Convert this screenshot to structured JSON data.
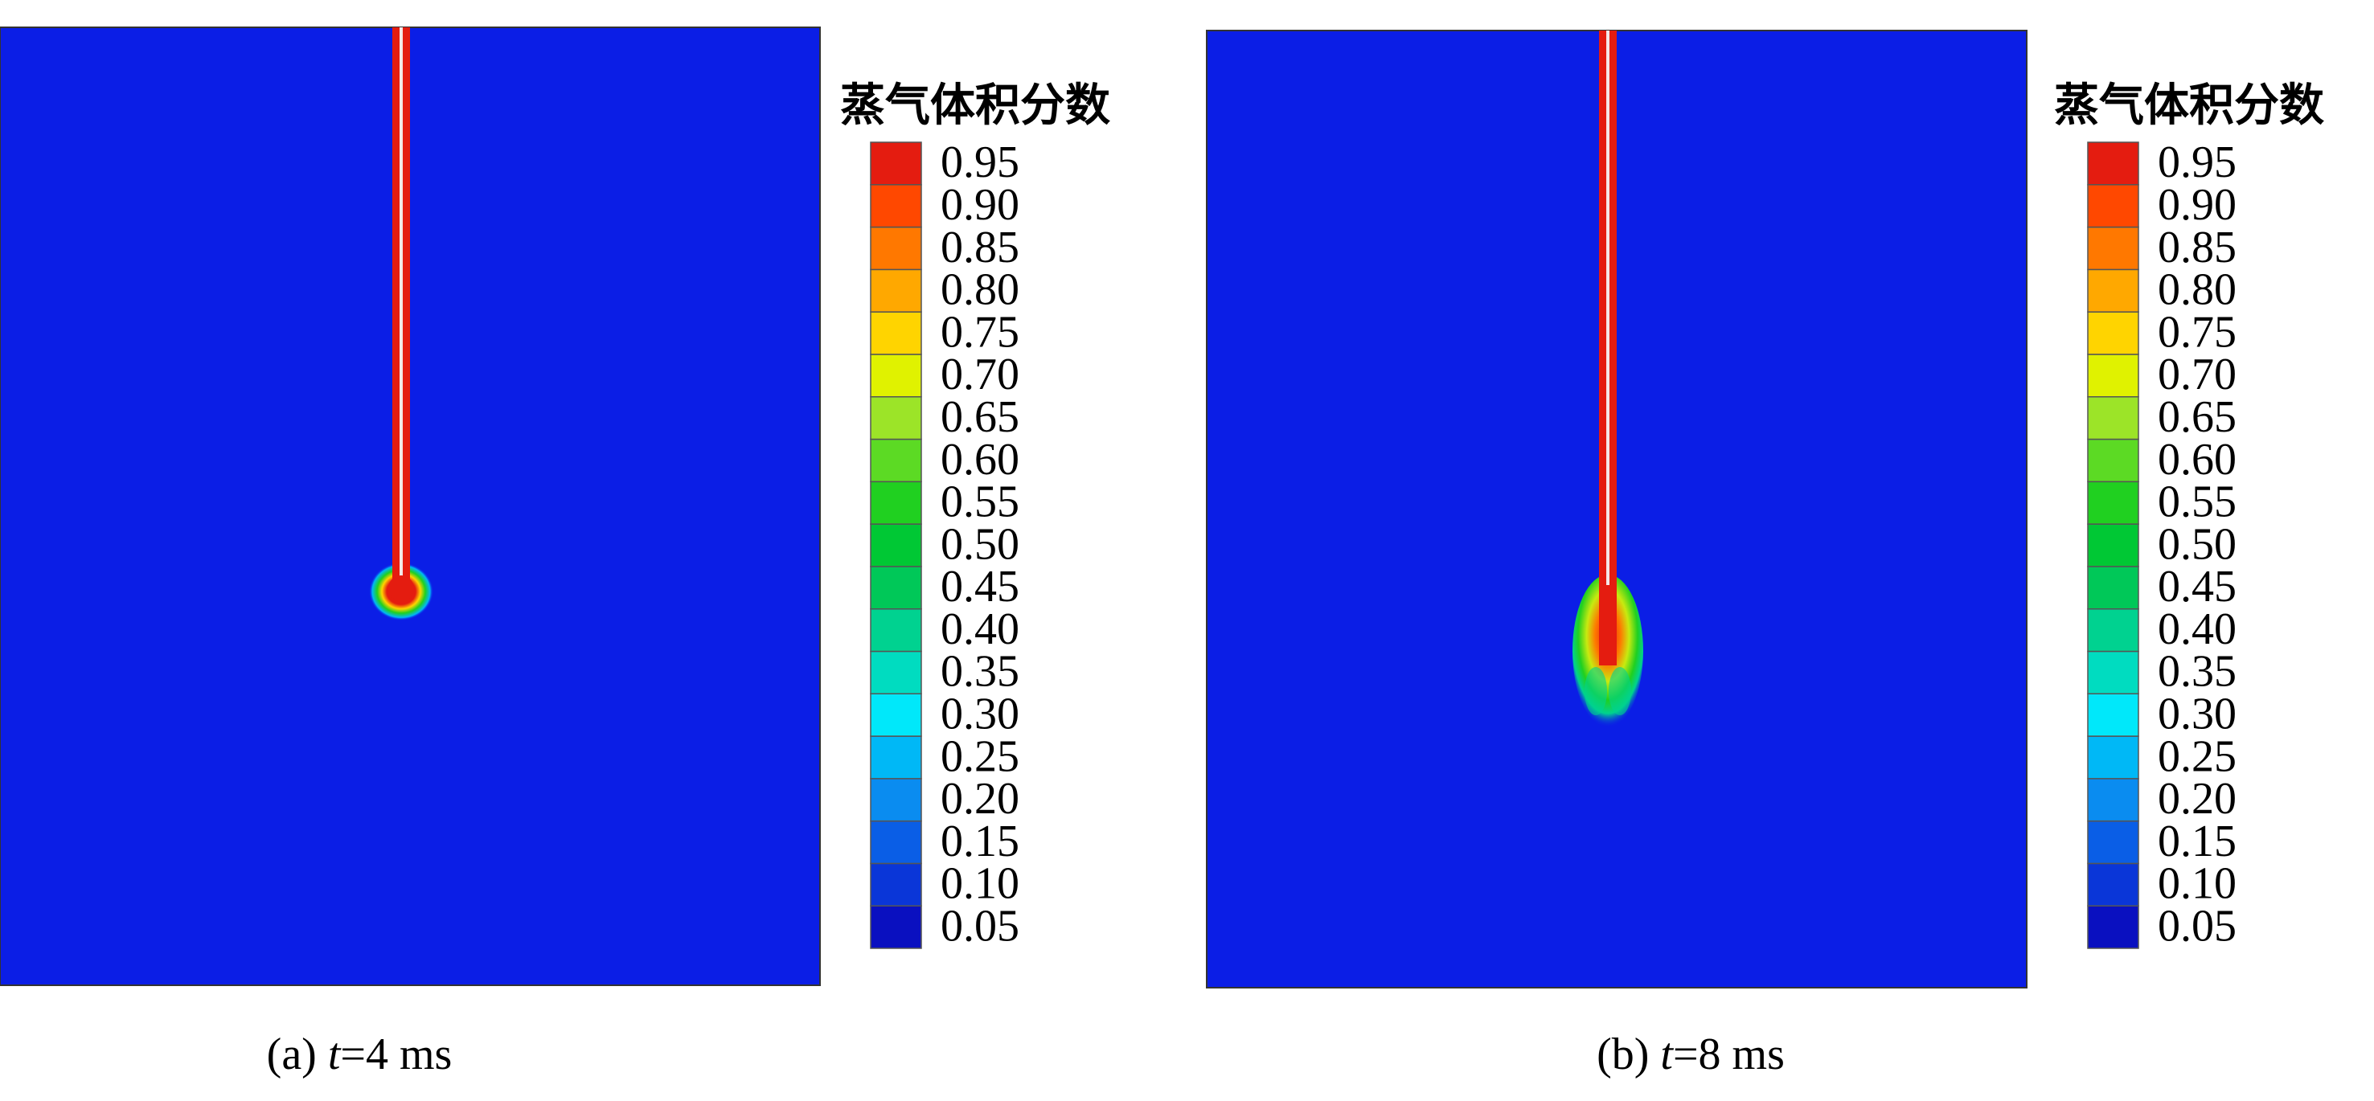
{
  "panels": [
    {
      "caption": {
        "label": "(a)",
        "symbol": "t",
        "rest": "=4 ms"
      },
      "colorbar": {
        "title": "蒸气体积分数",
        "levels": [
          {
            "label": "0.05",
            "color": "#0a10c0"
          },
          {
            "label": "0.10",
            "color": "#0a36d8"
          },
          {
            "label": "0.15",
            "color": "#0a5ee6"
          },
          {
            "label": "0.20",
            "color": "#0a8cf0"
          },
          {
            "label": "0.25",
            "color": "#00b8f6"
          },
          {
            "label": "0.30",
            "color": "#00e8fa"
          },
          {
            "label": "0.35",
            "color": "#00dcc0"
          },
          {
            "label": "0.40",
            "color": "#00d290"
          },
          {
            "label": "0.45",
            "color": "#00c858"
          },
          {
            "label": "0.50",
            "color": "#00c834"
          },
          {
            "label": "0.55",
            "color": "#20d020"
          },
          {
            "label": "0.60",
            "color": "#5cda24"
          },
          {
            "label": "0.65",
            "color": "#9ce428"
          },
          {
            "label": "0.70",
            "color": "#e0f200"
          },
          {
            "label": "0.75",
            "color": "#ffd400"
          },
          {
            "label": "0.80",
            "color": "#ffa800"
          },
          {
            "label": "0.85",
            "color": "#ff7800"
          },
          {
            "label": "0.90",
            "color": "#ff4800"
          },
          {
            "label": "0.95",
            "color": "#e41c10"
          }
        ]
      }
    },
    {
      "caption": {
        "label": "(b)",
        "symbol": "t",
        "rest": "=8 ms"
      },
      "colorbar": {
        "title": "蒸气体积分数",
        "levels": [
          {
            "label": "0.05",
            "color": "#0a10c0"
          },
          {
            "label": "0.10",
            "color": "#0a36d8"
          },
          {
            "label": "0.15",
            "color": "#0a5ee6"
          },
          {
            "label": "0.20",
            "color": "#0a8cf0"
          },
          {
            "label": "0.25",
            "color": "#00b8f6"
          },
          {
            "label": "0.30",
            "color": "#00e8fa"
          },
          {
            "label": "0.35",
            "color": "#00dcc0"
          },
          {
            "label": "0.40",
            "color": "#00d290"
          },
          {
            "label": "0.45",
            "color": "#00c858"
          },
          {
            "label": "0.50",
            "color": "#00c834"
          },
          {
            "label": "0.55",
            "color": "#20d020"
          },
          {
            "label": "0.60",
            "color": "#5cda24"
          },
          {
            "label": "0.65",
            "color": "#9ce428"
          },
          {
            "label": "0.70",
            "color": "#e0f200"
          },
          {
            "label": "0.75",
            "color": "#ffd400"
          },
          {
            "label": "0.80",
            "color": "#ffa800"
          },
          {
            "label": "0.85",
            "color": "#ff7800"
          },
          {
            "label": "0.90",
            "color": "#ff4800"
          },
          {
            "label": "0.95",
            "color": "#e41c10"
          }
        ]
      }
    }
  ]
}
